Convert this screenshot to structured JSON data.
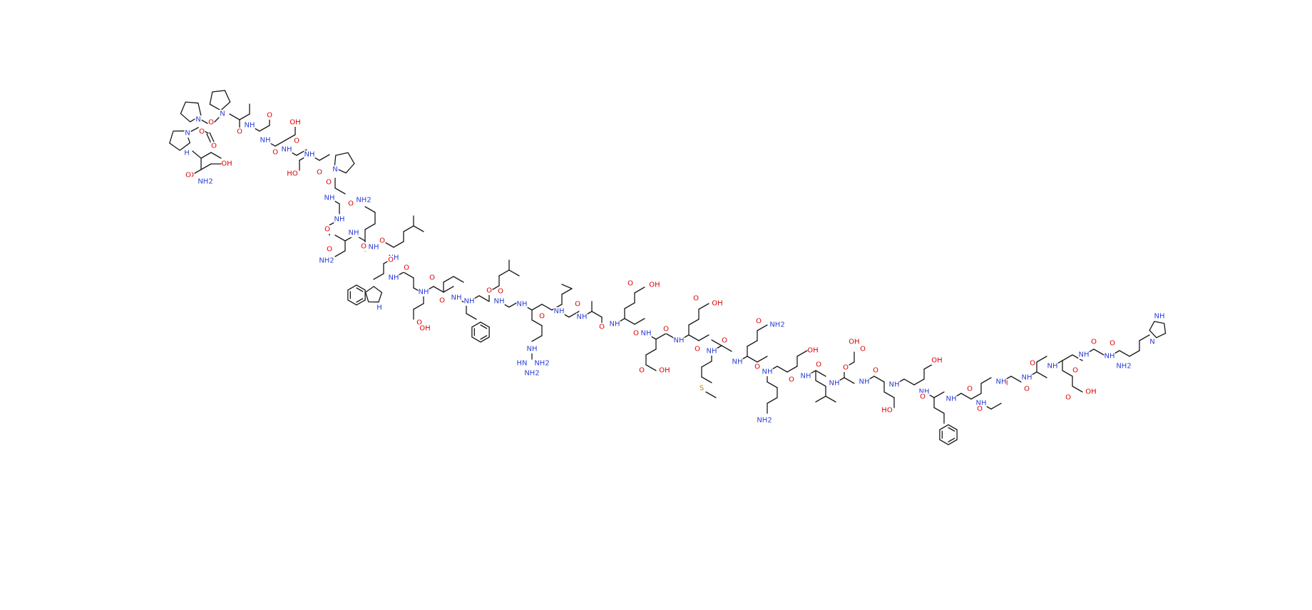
{
  "colors": {
    "bond": "#1a1a1a",
    "oxygen": "#e00000",
    "nitrogen": "#2b3fd6",
    "sulfur": "#b08a00",
    "background": "#ffffff"
  },
  "atom_labels": {
    "n": "N",
    "nh": "NH",
    "h": "H",
    "oh": "OH",
    "nh2": "NH2",
    "o": "O",
    "s": "S",
    "hn": "HN",
    "ho": "HO"
  }
}
